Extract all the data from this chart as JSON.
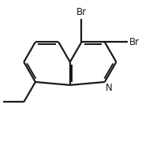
{
  "bg_color": "#ffffff",
  "bond_color": "#1a1a1a",
  "bond_width": 1.6,
  "text_color": "#1a1a1a",
  "font_size": 8.5,
  "figsize": [
    1.89,
    1.94
  ],
  "dpi": 100,
  "N_label": "N",
  "Br_label": "Br"
}
